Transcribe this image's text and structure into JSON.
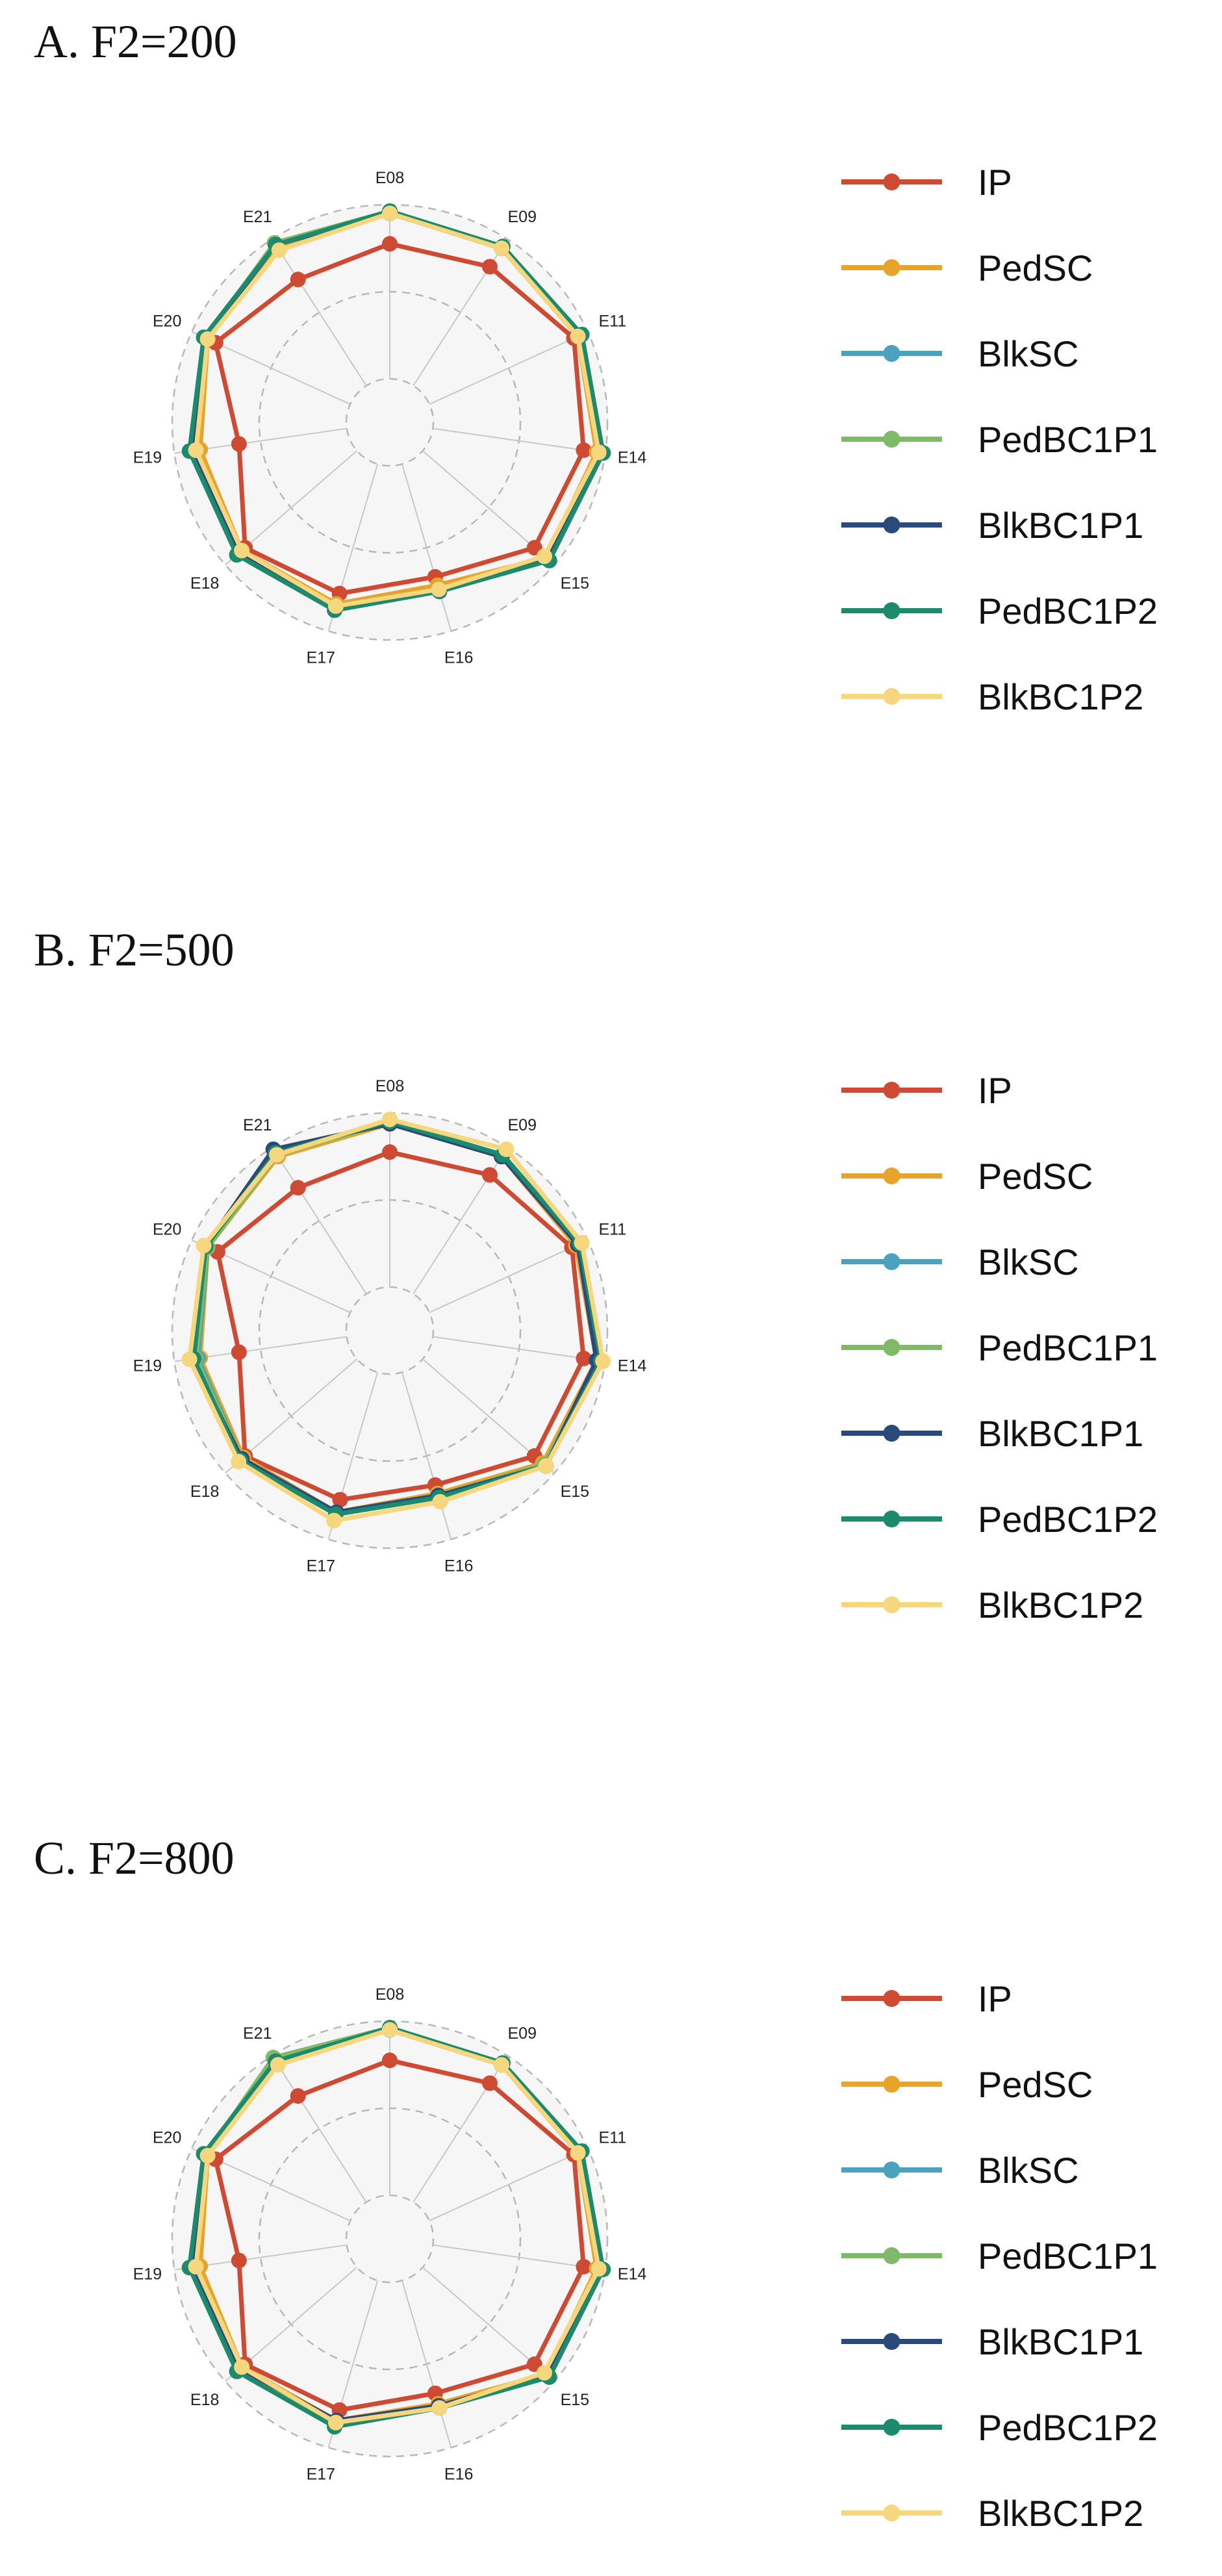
{
  "series_styles": [
    {
      "name": "IP",
      "color": "#cf4a32"
    },
    {
      "name": "PedSC",
      "color": "#e6a52a"
    },
    {
      "name": "BlkSC",
      "color": "#4aa3be"
    },
    {
      "name": "PedBC1P1",
      "color": "#7fba68"
    },
    {
      "name": "BlkBC1P1",
      "color": "#2b4a7c"
    },
    {
      "name": "PedBC1P2",
      "color": "#1c8a6c"
    },
    {
      "name": "BlkBC1P2",
      "color": "#f7d77d"
    }
  ],
  "chart_data": [
    {
      "type": "radar",
      "title": "A. F2=200",
      "categories": [
        "E08",
        "E09",
        "E11",
        "E14",
        "E15",
        "E16",
        "E17",
        "E18",
        "E19",
        "E20",
        "E21"
      ],
      "legend": "right",
      "series": [
        {
          "name": "IP",
          "values": [
            0.82,
            0.85,
            0.93,
            0.9,
            0.88,
            0.74,
            0.82,
            0.88,
            0.7,
            0.88,
            0.78
          ]
        },
        {
          "name": "PedSC",
          "values": [
            0.96,
            0.95,
            0.95,
            0.96,
            0.95,
            0.78,
            0.87,
            0.9,
            0.88,
            0.92,
            0.95
          ]
        },
        {
          "name": "BlkSC",
          "values": [
            0.97,
            0.96,
            0.96,
            0.98,
            0.96,
            0.8,
            0.88,
            0.91,
            0.91,
            0.93,
            0.97
          ]
        },
        {
          "name": "PedBC1P1",
          "values": [
            0.97,
            0.96,
            0.96,
            0.99,
            0.97,
            0.8,
            0.88,
            0.91,
            0.92,
            0.93,
            0.98
          ]
        },
        {
          "name": "BlkBC1P1",
          "values": [
            0.96,
            0.95,
            0.95,
            0.97,
            0.96,
            0.8,
            0.88,
            0.91,
            0.92,
            0.93,
            0.97
          ]
        },
        {
          "name": "PedBC1P2",
          "values": [
            0.97,
            0.96,
            0.97,
            0.99,
            0.97,
            0.81,
            0.9,
            0.93,
            0.93,
            0.94,
            0.97
          ]
        },
        {
          "name": "BlkBC1P2",
          "values": [
            0.96,
            0.95,
            0.95,
            0.97,
            0.94,
            0.8,
            0.88,
            0.9,
            0.9,
            0.92,
            0.94
          ]
        }
      ]
    },
    {
      "type": "radar",
      "title": "B. F2=500",
      "categories": [
        "E08",
        "E09",
        "E11",
        "E14",
        "E15",
        "E16",
        "E17",
        "E18",
        "E19",
        "E20",
        "E21"
      ],
      "legend": "right",
      "series": [
        {
          "name": "IP",
          "values": [
            0.82,
            0.85,
            0.92,
            0.9,
            0.88,
            0.74,
            0.81,
            0.88,
            0.7,
            0.87,
            0.78
          ]
        },
        {
          "name": "PedSC",
          "values": [
            0.95,
            0.95,
            0.94,
            0.96,
            0.93,
            0.78,
            0.87,
            0.89,
            0.88,
            0.92,
            0.95
          ]
        },
        {
          "name": "BlkSC",
          "values": [
            0.96,
            0.96,
            0.95,
            0.97,
            0.94,
            0.79,
            0.87,
            0.9,
            0.89,
            0.92,
            0.96
          ]
        },
        {
          "name": "PedBC1P1",
          "values": [
            0.96,
            0.96,
            0.96,
            0.97,
            0.94,
            0.79,
            0.87,
            0.9,
            0.9,
            0.92,
            0.96
          ]
        },
        {
          "name": "BlkBC1P1",
          "values": [
            0.95,
            0.95,
            0.95,
            0.96,
            0.95,
            0.79,
            0.87,
            0.9,
            0.92,
            0.93,
            0.99
          ]
        },
        {
          "name": "PedBC1P2",
          "values": [
            0.96,
            0.96,
            0.96,
            0.98,
            0.95,
            0.8,
            0.88,
            0.91,
            0.91,
            0.93,
            0.97
          ]
        },
        {
          "name": "BlkBC1P2",
          "values": [
            0.97,
            0.99,
            0.97,
            0.99,
            0.95,
            0.82,
            0.91,
            0.92,
            0.93,
            0.94,
            0.96
          ]
        }
      ]
    },
    {
      "type": "radar",
      "title": "C. F2=800",
      "categories": [
        "E08",
        "E09",
        "E11",
        "E14",
        "E15",
        "E16",
        "E17",
        "E18",
        "E19",
        "E20",
        "E21"
      ],
      "legend": "right",
      "series": [
        {
          "name": "IP",
          "values": [
            0.82,
            0.85,
            0.93,
            0.9,
            0.88,
            0.74,
            0.82,
            0.88,
            0.7,
            0.88,
            0.78
          ]
        },
        {
          "name": "PedSC",
          "values": [
            0.96,
            0.96,
            0.95,
            0.96,
            0.95,
            0.79,
            0.87,
            0.9,
            0.88,
            0.92,
            0.96
          ]
        },
        {
          "name": "BlkSC",
          "values": [
            0.96,
            0.96,
            0.96,
            0.97,
            0.96,
            0.8,
            0.88,
            0.91,
            0.9,
            0.93,
            0.97
          ]
        },
        {
          "name": "PedBC1P1",
          "values": [
            0.97,
            0.96,
            0.96,
            0.98,
            0.97,
            0.8,
            0.88,
            0.91,
            0.92,
            0.93,
            0.99
          ]
        },
        {
          "name": "BlkBC1P1",
          "values": [
            0.96,
            0.95,
            0.95,
            0.97,
            0.96,
            0.8,
            0.87,
            0.91,
            0.92,
            0.93,
            0.97
          ]
        },
        {
          "name": "PedBC1P2",
          "values": [
            0.97,
            0.96,
            0.97,
            0.99,
            0.97,
            0.81,
            0.9,
            0.93,
            0.93,
            0.94,
            0.97
          ]
        },
        {
          "name": "BlkBC1P2",
          "values": [
            0.96,
            0.95,
            0.95,
            0.97,
            0.94,
            0.81,
            0.88,
            0.9,
            0.9,
            0.92,
            0.95
          ]
        }
      ]
    }
  ]
}
